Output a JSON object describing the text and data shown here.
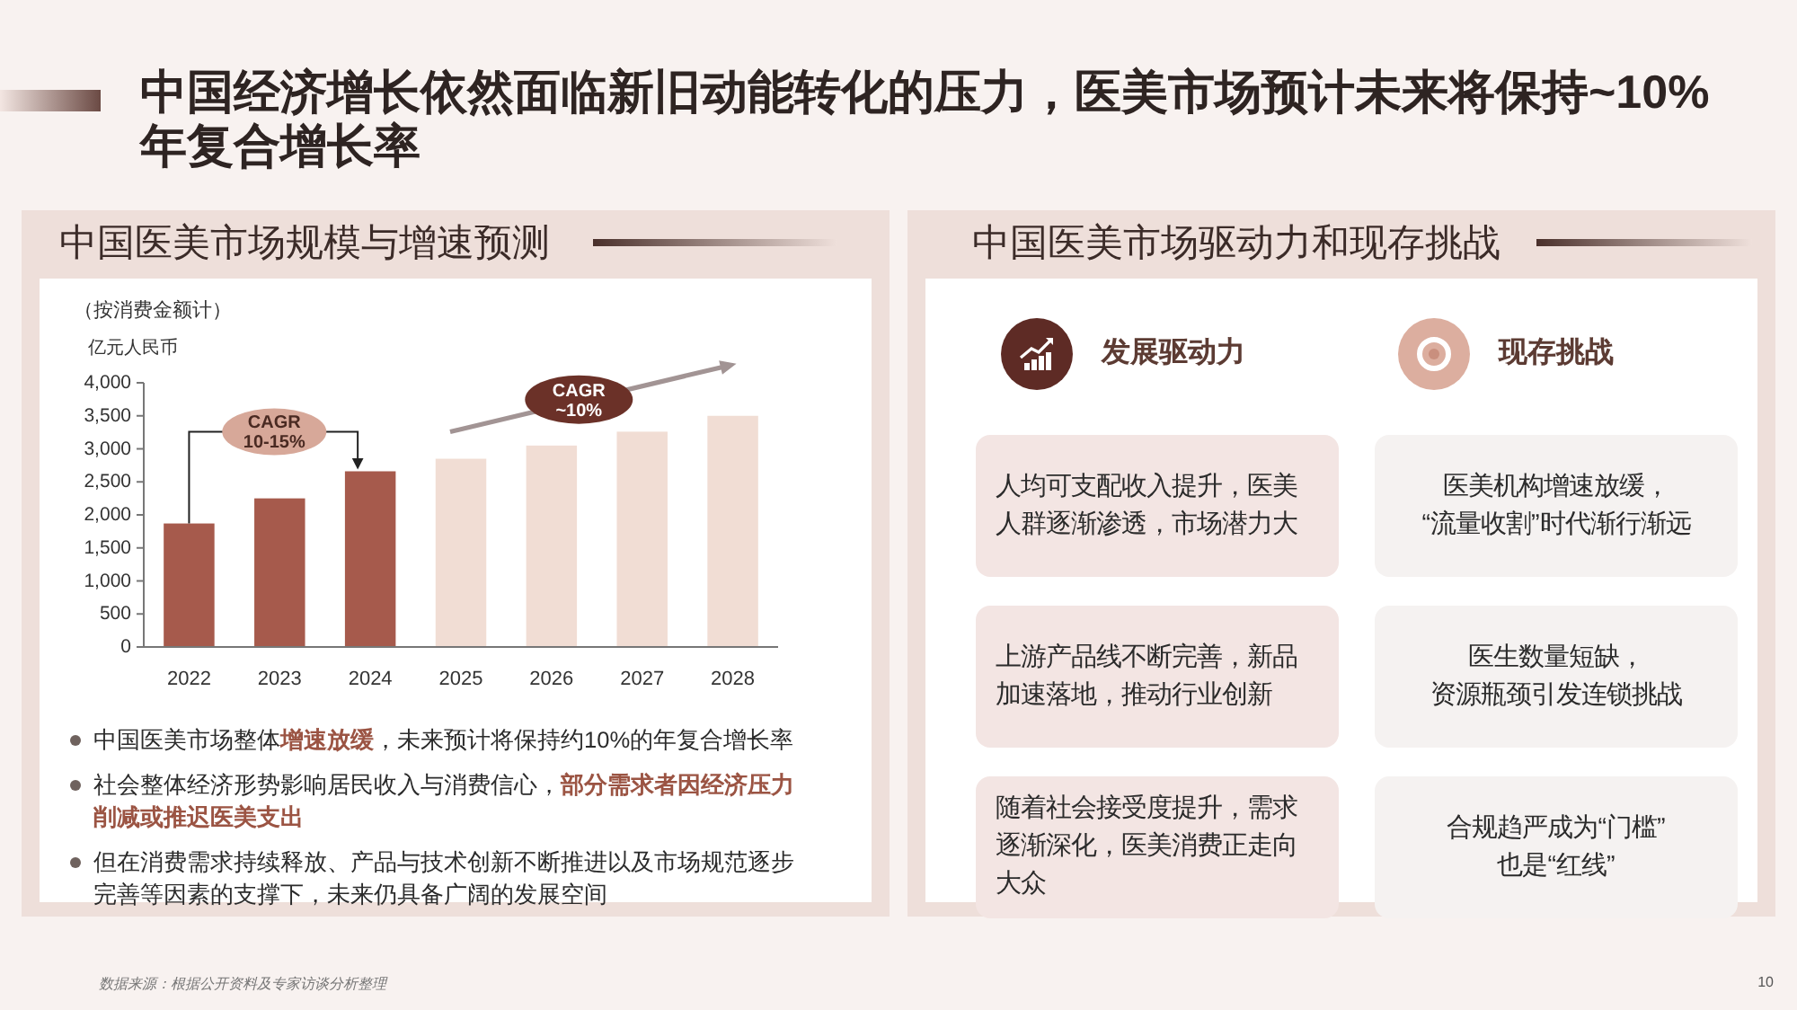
{
  "chart_data": [
    {
      "type": "bar",
      "title": "中国经济增长依然面临新旧动能转化的压力，医美市场预计未来将保持~10%年复合增长率",
      "subtitle": "中国医美市场规模与增速预测",
      "ylabel": "亿元人民币",
      "categories": [
        "2022",
        "2023",
        "2024",
        "2025",
        "2026",
        "2027",
        "2028"
      ],
      "values": [
        1870,
        2250,
        2660,
        2850,
        3050,
        3260,
        3500
      ],
      "colors": [
        "#a65a4c",
        "#a65a4c",
        "#a65a4c",
        "#f1ddd4",
        "#f1ddd4",
        "#f1ddd4",
        "#f1ddd4"
      ],
      "ylim": [
        0,
        4000
      ],
      "yticks": [
        0,
        500,
        {
          "value": 1000,
          "label": "1,000"
        },
        {
          "value": 1500,
          "label": "1,500"
        },
        {
          "value": 2000,
          "label": "2,000"
        },
        {
          "value": 2500,
          "label": "2,500"
        },
        {
          "value": 3000,
          "label": "3,000"
        },
        {
          "value": 3500,
          "label": "3,500"
        },
        {
          "value": 4000,
          "label": "4,000"
        }
      ],
      "annotations": [
        "（按消费金额计）",
        "CAGR 10-15%",
        "CAGR ~10%",
        "中国医美市场整体**增速放缓**，未来预计将保持约10%的年复合增长率",
        "社会整体经济形势影响居民收入与消费信心，**部分需求者因经济压力削减或推迟医美支出**",
        "但在消费需求持续释放、产品与技术创新不断推进以及市场规范逐步完善等因素的支撑下，未来仍具备广阔的发展空间",
        "数据来源：根据公开资料及专家访谈分析整理",
        "10"
      ]
    },
    {
      "type": "other",
      "title": "中国医美市场驱动力和现存挑战",
      "annotations": [
        "发展驱动力",
        "现存挑战",
        "人均可支配收入提升，医美人群逐渐渗透，市场潜力大",
        "上游产品线不断完善，新品加速落地，推动行业创新",
        "随着社会接受度提升，需求逐渐深化，医美消费正走向大众",
        "医美机构增速放缓，“流量收割”时代渐行渐远",
        "医生数量短缺，资源瓶颈引发连锁挑战",
        "合规趋严成为“门槛”也是“红线”"
      ]
    }
  ]
}
